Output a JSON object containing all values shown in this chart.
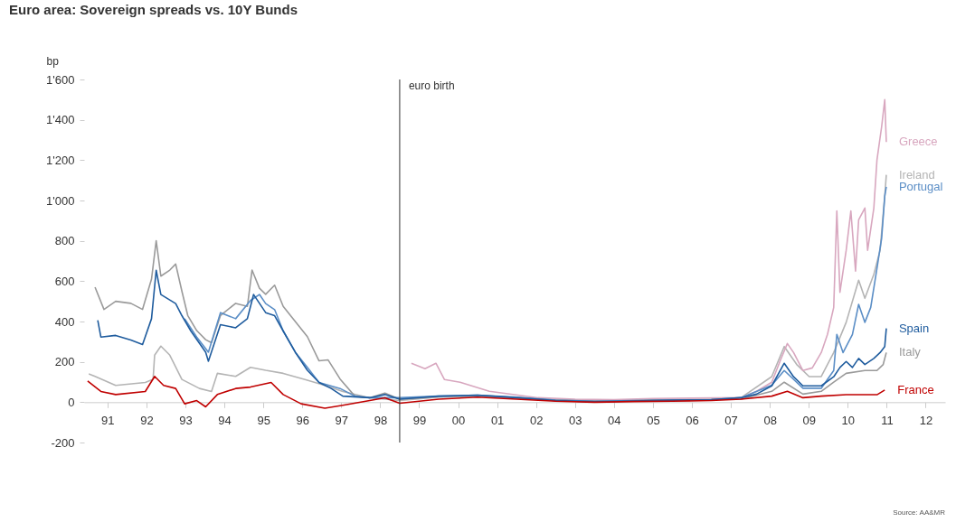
{
  "chart_data": {
    "type": "line",
    "title": "Euro area: Sovereign spreads vs. 10Y Bunds",
    "ylabel": "bp",
    "xlim": [
      1990.4,
      2012.5
    ],
    "xticks": [
      {
        "value": 1991,
        "label": "91"
      },
      {
        "value": 1992,
        "label": "92"
      },
      {
        "value": 1993,
        "label": "93"
      },
      {
        "value": 1994,
        "label": "94"
      },
      {
        "value": 1995,
        "label": "95"
      },
      {
        "value": 1996,
        "label": "96"
      },
      {
        "value": 1997,
        "label": "97"
      },
      {
        "value": 1998,
        "label": "98"
      },
      {
        "value": 1999,
        "label": "99"
      },
      {
        "value": 2000,
        "label": "00"
      },
      {
        "value": 2001,
        "label": "01"
      },
      {
        "value": 2002,
        "label": "02"
      },
      {
        "value": 2003,
        "label": "03"
      },
      {
        "value": 2004,
        "label": "04"
      },
      {
        "value": 2005,
        "label": "05"
      },
      {
        "value": 2006,
        "label": "06"
      },
      {
        "value": 2007,
        "label": "07"
      },
      {
        "value": 2008,
        "label": "08"
      },
      {
        "value": 2009,
        "label": "09"
      },
      {
        "value": 2010,
        "label": "10"
      },
      {
        "value": 2011,
        "label": "11"
      },
      {
        "value": 2012,
        "label": "12"
      }
    ],
    "ylim": [
      -200,
      1600
    ],
    "yticks": [
      -200,
      0,
      200,
      400,
      600,
      800,
      {
        "value": 1000,
        "label": "1'000"
      },
      {
        "value": 1200,
        "label": "1'200"
      },
      {
        "value": 1400,
        "label": "1'400"
      },
      {
        "value": 1600,
        "label": "1'600"
      }
    ],
    "grid": false,
    "series": [
      {
        "name": "Ireland",
        "color": "#b4b4b4",
        "x": [
          1990.52,
          1990.68,
          1991.21,
          1991.97,
          1992.17,
          1992.21,
          1992.37,
          1992.6,
          1992.91,
          1993.36,
          1993.67,
          1993.82,
          1994.29,
          1994.67,
          1995.06,
          1995.51,
          1996.05,
          1996.58,
          1997.04,
          1997.73,
          1998.5,
          1999.5,
          2000.5,
          2001.5,
          2002.5,
          2003.5,
          2004.5,
          2005.5,
          2006.5,
          2007.26,
          2008.05,
          2008.37,
          2008.69,
          2009.01,
          2009.32,
          2009.64,
          2009.96,
          2010.28,
          2010.44,
          2010.67,
          2010.83,
          2010.95,
          2010.99
        ],
        "values": [
          140,
          128,
          83,
          98,
          113,
          233,
          278,
          233,
          113,
          68,
          53,
          143,
          128,
          173,
          158,
          143,
          113,
          83,
          53,
          22,
          8,
          25,
          30,
          20,
          8,
          2,
          5,
          10,
          12,
          22,
          127,
          276,
          187,
          127,
          127,
          246,
          396,
          605,
          515,
          634,
          753,
          1022,
          1127
        ]
      },
      {
        "name": "Italy",
        "color": "#9a9a9a",
        "x": [
          1990.68,
          1990.91,
          1991.21,
          1991.6,
          1991.9,
          1992.13,
          1992.25,
          1992.37,
          1992.6,
          1992.75,
          1992.91,
          1993.06,
          1993.29,
          1993.52,
          1993.67,
          1993.9,
          1994.29,
          1994.59,
          1994.71,
          1994.9,
          1995.06,
          1995.29,
          1995.51,
          1995.82,
          1996.13,
          1996.43,
          1996.66,
          1996.97,
          1997.35,
          1997.73,
          1998.12,
          1998.5,
          1999.5,
          2000.5,
          2001.5,
          2002.5,
          2003.5,
          2004.5,
          2005.5,
          2006.5,
          2007.26,
          2008.05,
          2008.37,
          2008.85,
          2009.32,
          2009.64,
          2009.96,
          2010.44,
          2010.75,
          2010.91,
          2010.99
        ],
        "values": [
          570,
          460,
          500,
          490,
          460,
          610,
          800,
          625,
          655,
          685,
          550,
          430,
          355,
          310,
          295,
          430,
          490,
          475,
          655,
          565,
          535,
          580,
          475,
          400,
          325,
          205,
          210,
          115,
          30,
          22,
          45,
          15,
          28,
          32,
          22,
          12,
          8,
          10,
          12,
          14,
          15,
          54,
          99,
          40,
          54,
          99,
          143,
          157,
          157,
          187,
          246
        ]
      },
      {
        "name": "Greece",
        "color": "#d8a7bf",
        "x": [
          1998.8,
          1999.15,
          1999.43,
          1999.65,
          2000.05,
          2000.8,
          2002.05,
          2003.0,
          2004.0,
          2005.0,
          2006.0,
          2007.26,
          2007.66,
          2008.05,
          2008.29,
          2008.45,
          2008.61,
          2008.85,
          2009.09,
          2009.32,
          2009.48,
          2009.64,
          2009.72,
          2009.8,
          2009.96,
          2010.08,
          2010.2,
          2010.28,
          2010.44,
          2010.51,
          2010.67,
          2010.75,
          2010.87,
          2010.95,
          2010.99
        ],
        "values": [
          193,
          166,
          193,
          112,
          99,
          54,
          22,
          15,
          12,
          18,
          20,
          22,
          54,
          99,
          217,
          291,
          246,
          157,
          170,
          246,
          336,
          470,
          948,
          545,
          753,
          948,
          650,
          904,
          963,
          753,
          963,
          1201,
          1366,
          1500,
          1290
        ]
      },
      {
        "name": "Portugal",
        "color": "#5b8ec6",
        "x": [
          1992.98,
          1993.29,
          1993.59,
          1993.9,
          1994.29,
          1994.67,
          1994.9,
          1995.06,
          1995.29,
          1995.51,
          1995.82,
          1996.13,
          1996.43,
          1996.97,
          1997.35,
          1997.73,
          1998.5,
          1999.5,
          2000.5,
          2001.5,
          2002.5,
          2003.5,
          2004.5,
          2005.5,
          2006.5,
          2007.26,
          2008.05,
          2008.37,
          2008.85,
          2009.32,
          2009.64,
          2009.72,
          2009.88,
          2010.12,
          2010.28,
          2010.44,
          2010.59,
          2010.75,
          2010.87,
          2010.95,
          2010.99
        ],
        "values": [
          414,
          323,
          248,
          444,
          414,
          504,
          534,
          489,
          459,
          353,
          248,
          173,
          98,
          68,
          30,
          22,
          22,
          30,
          35,
          25,
          10,
          5,
          8,
          10,
          12,
          22,
          84,
          157,
          69,
          69,
          157,
          336,
          246,
          336,
          485,
          396,
          470,
          664,
          813,
          1022,
          1068
        ]
      },
      {
        "name": "Spain",
        "color": "#1f5c9e",
        "x": [
          1990.75,
          1990.83,
          1991.21,
          1991.6,
          1991.9,
          1992.13,
          1992.25,
          1992.37,
          1992.75,
          1992.91,
          1993.14,
          1993.52,
          1993.59,
          1993.9,
          1994.29,
          1994.59,
          1994.75,
          1995.06,
          1995.29,
          1995.51,
          1995.82,
          1996.13,
          1996.43,
          1996.74,
          1997.04,
          1997.73,
          1998.12,
          1998.5,
          1999.5,
          2000.5,
          2001.5,
          2002.5,
          2003.5,
          2004.5,
          2005.5,
          2006.5,
          2007.26,
          2007.66,
          2008.05,
          2008.37,
          2008.61,
          2008.85,
          2009.32,
          2009.64,
          2009.8,
          2009.96,
          2010.12,
          2010.28,
          2010.44,
          2010.67,
          2010.83,
          2010.95,
          2010.99
        ],
        "values": [
          406,
          323,
          331,
          308,
          286,
          414,
          654,
          534,
          489,
          429,
          353,
          248,
          203,
          384,
          369,
          414,
          534,
          444,
          429,
          353,
          248,
          158,
          98,
          68,
          30,
          22,
          38,
          15,
          30,
          35,
          22,
          8,
          2,
          6,
          10,
          12,
          22,
          40,
          81,
          193,
          126,
          81,
          81,
          126,
          172,
          202,
          172,
          217,
          187,
          217,
          246,
          276,
          366
        ]
      },
      {
        "name": "France",
        "color": "#c00000",
        "x": [
          1990.49,
          1990.83,
          1991.21,
          1991.97,
          1992.21,
          1992.44,
          1992.75,
          1992.98,
          1993.29,
          1993.52,
          1993.82,
          1994.29,
          1994.67,
          1995.2,
          1995.51,
          1995.97,
          1996.58,
          1997.04,
          1997.73,
          1998.12,
          1998.5,
          1999.5,
          2000.5,
          2001.5,
          2002.5,
          2003.5,
          2004.5,
          2005.5,
          2006.5,
          2007.26,
          2008.05,
          2008.45,
          2008.85,
          2009.32,
          2009.96,
          2010.44,
          2010.75,
          2010.95
        ],
        "values": [
          105,
          53,
          38,
          53,
          128,
          83,
          68,
          -8,
          8,
          -23,
          38,
          68,
          75,
          98,
          38,
          -8,
          -30,
          -15,
          8,
          22,
          -5,
          15,
          25,
          15,
          5,
          0,
          3,
          5,
          8,
          15,
          30,
          54,
          22,
          30,
          37,
          37,
          37,
          60
        ]
      }
    ],
    "ref_lines": [
      {
        "axis": "x",
        "value": 1998.5,
        "label": "euro birth",
        "color": "#333333"
      }
    ],
    "annotations": [
      "Source: AA&MR"
    ]
  }
}
